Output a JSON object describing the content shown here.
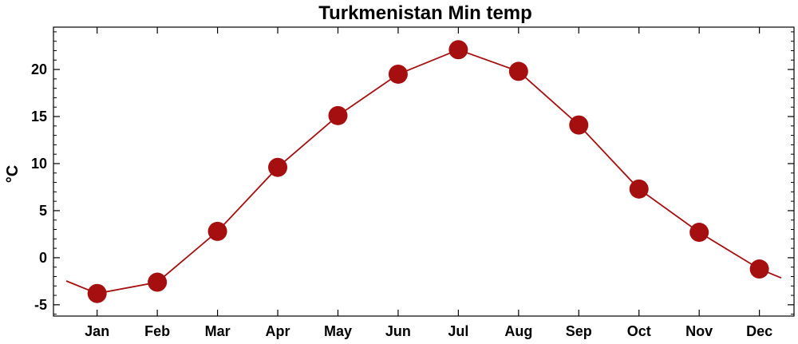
{
  "chart_data": {
    "type": "line",
    "title": "Turkmenistan Min temp",
    "xlabel": "",
    "ylabel": "°C",
    "categories": [
      "Jan",
      "Feb",
      "Mar",
      "Apr",
      "May",
      "Jun",
      "Jul",
      "Aug",
      "Sep",
      "Oct",
      "Nov",
      "Dec"
    ],
    "series": [
      {
        "values": [
          -3.8,
          -2.6,
          2.8,
          9.6,
          15.1,
          19.5,
          22.1,
          19.8,
          14.1,
          7.3,
          2.7,
          -1.2
        ],
        "color": "#a50f0f"
      }
    ],
    "ylim": [
      -6.2,
      24.5
    ],
    "yticks": [
      -5,
      0,
      5,
      10,
      15,
      20
    ],
    "grid": false,
    "legend": "none"
  }
}
